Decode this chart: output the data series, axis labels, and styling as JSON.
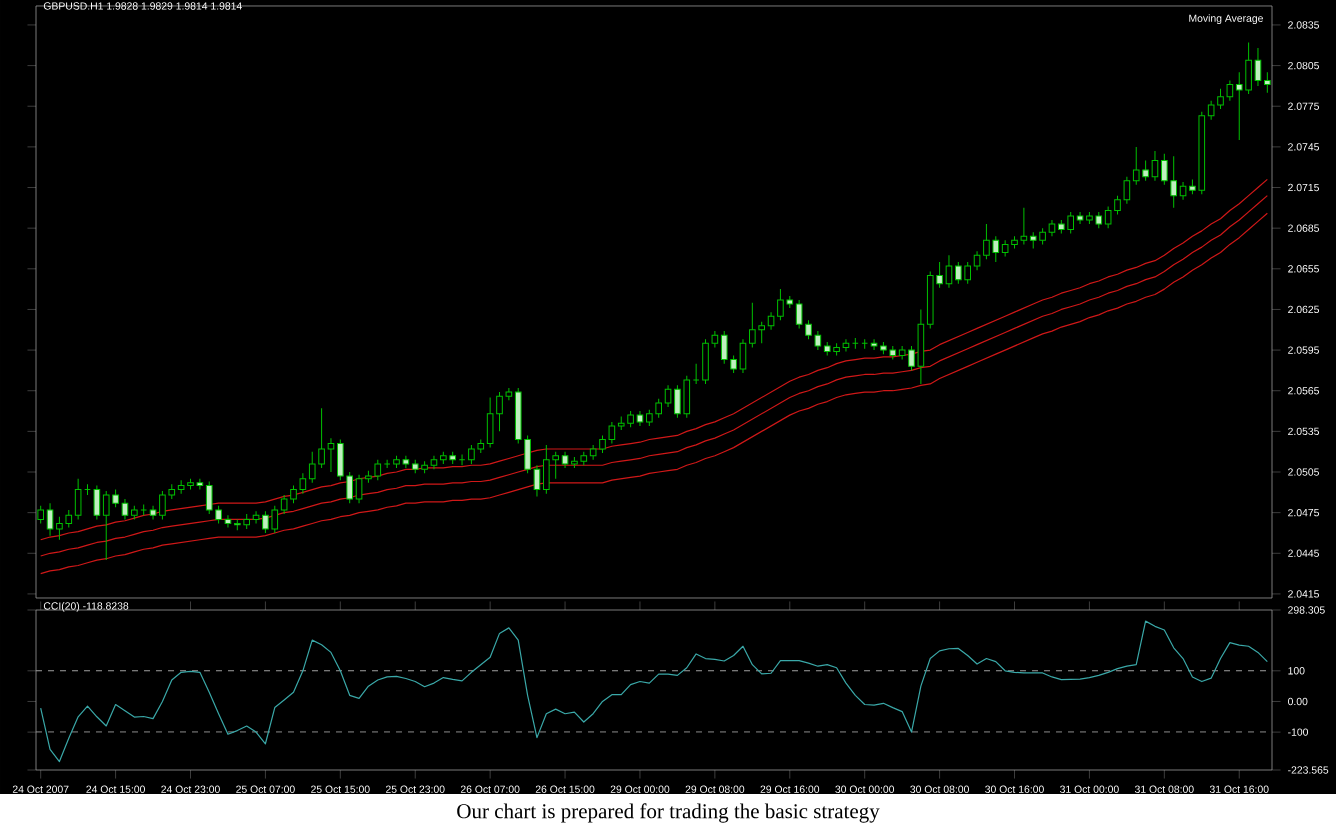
{
  "chart_data": [
    {
      "type": "candlestick",
      "title": "GBPUSD.H1 1.9828 1.9829 1.9814 1.9814",
      "annotations": [
        "Moving Average"
      ],
      "color": "#00c000",
      "ylim": [
        2.0412,
        2.0849
      ],
      "tick_labels": "y",
      "categories": [
        null,
        null,
        null,
        null,
        null,
        null,
        null,
        null,
        null,
        null,
        null,
        null,
        null,
        null,
        null,
        null,
        null,
        null,
        null,
        null,
        null,
        null,
        null,
        null,
        null,
        null,
        null,
        null,
        null,
        null,
        null,
        null,
        null,
        null,
        null,
        null,
        null,
        null,
        null,
        null,
        null,
        null,
        null,
        null,
        null,
        null,
        null,
        null,
        null,
        null,
        null,
        null,
        null,
        null,
        null,
        null,
        null,
        null,
        null,
        null,
        null,
        null,
        null,
        null,
        null,
        null,
        null,
        null,
        null,
        null,
        null,
        null,
        null,
        null,
        null,
        null,
        null,
        null,
        null,
        null,
        null,
        null,
        null,
        null,
        null,
        null,
        null,
        null,
        null,
        null,
        null,
        null,
        null,
        null,
        null,
        null,
        null,
        null,
        null,
        null,
        null,
        null,
        null,
        null,
        null,
        null,
        null,
        null,
        null,
        null,
        null,
        null,
        null,
        null,
        null,
        null,
        null,
        null,
        null,
        null,
        null,
        null,
        null,
        null,
        null,
        null,
        null,
        null,
        null,
        null,
        null,
        null
      ],
      "yticks": [
        2.0415,
        2.0445,
        2.0475,
        2.0505,
        2.0535,
        2.0565,
        2.0595,
        2.0625,
        2.0655,
        2.0685,
        2.0715,
        2.0745,
        2.0775,
        2.0805,
        2.0835
      ],
      "ohlc": [
        [
          2.047,
          2.048,
          2.0467,
          2.0477
        ],
        [
          2.0477,
          2.0482,
          2.0458,
          2.0463
        ],
        [
          2.0463,
          2.0472,
          2.0455,
          2.0467
        ],
        [
          2.0467,
          2.0477,
          2.0464,
          2.0473
        ],
        [
          2.0473,
          2.05,
          2.047,
          2.0492
        ],
        [
          2.0492,
          2.0496,
          2.0488,
          2.0492
        ],
        [
          2.0492,
          2.0495,
          2.047,
          2.0473
        ],
        [
          2.0473,
          2.0491,
          2.044,
          2.0488
        ],
        [
          2.0488,
          2.0492,
          2.0479,
          2.0482
        ],
        [
          2.0482,
          2.0485,
          2.047,
          2.0473
        ],
        [
          2.0473,
          2.048,
          2.047,
          2.0477
        ],
        [
          2.0477,
          2.0481,
          2.0473,
          2.0477
        ],
        [
          2.0477,
          2.048,
          2.047,
          2.0473
        ],
        [
          2.0473,
          2.0491,
          2.047,
          2.0488
        ],
        [
          2.0488,
          2.0496,
          2.0485,
          2.0492
        ],
        [
          2.0492,
          2.0499,
          2.0489,
          2.0495
        ],
        [
          2.0495,
          2.05,
          2.0492,
          2.0497
        ],
        [
          2.0497,
          2.05,
          2.0492,
          2.0495
        ],
        [
          2.0495,
          2.0498,
          2.0474,
          2.0477
        ],
        [
          2.0477,
          2.048,
          2.0467,
          2.047
        ],
        [
          2.047,
          2.0473,
          2.0464,
          2.0467
        ],
        [
          2.0467,
          2.047,
          2.0462,
          2.0466
        ],
        [
          2.0466,
          2.0474,
          2.0463,
          2.047
        ],
        [
          2.047,
          2.0476,
          2.0467,
          2.0473
        ],
        [
          2.0473,
          2.0476,
          2.046,
          2.0463
        ],
        [
          2.0463,
          2.048,
          2.046,
          2.0477
        ],
        [
          2.0477,
          2.0488,
          2.0474,
          2.0485
        ],
        [
          2.0485,
          2.0495,
          2.0482,
          2.0492
        ],
        [
          2.0492,
          2.0504,
          2.0489,
          2.05
        ],
        [
          2.05,
          2.052,
          2.0497,
          2.0511
        ],
        [
          2.0511,
          2.0552,
          2.0508,
          2.0522
        ],
        [
          2.0522,
          2.053,
          2.0505,
          2.0526
        ],
        [
          2.0526,
          2.0529,
          2.0499,
          2.0502
        ],
        [
          2.0502,
          2.0505,
          2.0482,
          2.0485
        ],
        [
          2.0485,
          2.0503,
          2.0482,
          2.05
        ],
        [
          2.05,
          2.0506,
          2.0497,
          2.0502
        ],
        [
          2.0502,
          2.0514,
          2.0499,
          2.0511
        ],
        [
          2.0511,
          2.0514,
          2.0508,
          2.0511
        ],
        [
          2.0511,
          2.0517,
          2.0508,
          2.0514
        ],
        [
          2.0514,
          2.0517,
          2.0508,
          2.0511
        ],
        [
          2.0511,
          2.0514,
          2.0504,
          2.0507
        ],
        [
          2.0507,
          2.0513,
          2.0504,
          2.051
        ],
        [
          2.051,
          2.0517,
          2.0507,
          2.0514
        ],
        [
          2.0514,
          2.052,
          2.0511,
          2.0517
        ],
        [
          2.0517,
          2.052,
          2.0511,
          2.0514
        ],
        [
          2.0514,
          2.0518,
          2.051,
          2.0514
        ],
        [
          2.0514,
          2.0525,
          2.0511,
          2.0522
        ],
        [
          2.0522,
          2.0529,
          2.0519,
          2.0526
        ],
        [
          2.0526,
          2.056,
          2.0523,
          2.0548
        ],
        [
          2.0548,
          2.0564,
          2.0535,
          2.0561
        ],
        [
          2.0561,
          2.0567,
          2.0558,
          2.0564
        ],
        [
          2.0564,
          2.0567,
          2.0526,
          2.0529
        ],
        [
          2.0529,
          2.0532,
          2.0504,
          2.0507
        ],
        [
          2.0507,
          2.051,
          2.0487,
          2.0492
        ],
        [
          2.0492,
          2.0525,
          2.0489,
          2.0514
        ],
        [
          2.0514,
          2.052,
          2.05,
          2.0517
        ],
        [
          2.0517,
          2.052,
          2.0508,
          2.0511
        ],
        [
          2.0511,
          2.0516,
          2.0508,
          2.0513
        ],
        [
          2.0513,
          2.052,
          2.051,
          2.0517
        ],
        [
          2.0517,
          2.0525,
          2.0514,
          2.0522
        ],
        [
          2.0522,
          2.0532,
          2.0519,
          2.0529
        ],
        [
          2.0529,
          2.0542,
          2.0526,
          2.0539
        ],
        [
          2.0539,
          2.0546,
          2.0536,
          2.0541
        ],
        [
          2.0541,
          2.055,
          2.0538,
          2.0547
        ],
        [
          2.0547,
          2.055,
          2.0539,
          2.0542
        ],
        [
          2.0542,
          2.0551,
          2.0539,
          2.0548
        ],
        [
          2.0548,
          2.0559,
          2.0545,
          2.0556
        ],
        [
          2.0556,
          2.0569,
          2.0553,
          2.0566
        ],
        [
          2.0566,
          2.0569,
          2.0545,
          2.0548
        ],
        [
          2.0548,
          2.0576,
          2.0545,
          2.0573
        ],
        [
          2.0573,
          2.0585,
          2.057,
          2.0573
        ],
        [
          2.0573,
          2.0603,
          2.057,
          2.06
        ],
        [
          2.06,
          2.0609,
          2.0597,
          2.0606
        ],
        [
          2.0606,
          2.0609,
          2.0585,
          2.0588
        ],
        [
          2.0588,
          2.0591,
          2.0578,
          2.0581
        ],
        [
          2.0581,
          2.0603,
          2.0578,
          2.06
        ],
        [
          2.06,
          2.063,
          2.0597,
          2.061
        ],
        [
          2.061,
          2.0616,
          2.06,
          2.0613
        ],
        [
          2.0613,
          2.0623,
          2.061,
          2.062
        ],
        [
          2.062,
          2.064,
          2.0617,
          2.0632
        ],
        [
          2.0632,
          2.0635,
          2.0626,
          2.0629
        ],
        [
          2.0629,
          2.0632,
          2.0611,
          2.0614
        ],
        [
          2.0614,
          2.0617,
          2.0603,
          2.0606
        ],
        [
          2.0606,
          2.0609,
          2.0595,
          2.0598
        ],
        [
          2.0598,
          2.0601,
          2.0591,
          2.0594
        ],
        [
          2.0594,
          2.06,
          2.0591,
          2.0597
        ],
        [
          2.0597,
          2.0603,
          2.0594,
          2.06
        ],
        [
          2.06,
          2.0604,
          2.0596,
          2.06
        ],
        [
          2.06,
          2.0603,
          2.0596,
          2.06
        ],
        [
          2.06,
          2.0603,
          2.0595,
          2.0598
        ],
        [
          2.0598,
          2.0601,
          2.0592,
          2.0595
        ],
        [
          2.0595,
          2.0598,
          2.0588,
          2.0591
        ],
        [
          2.0591,
          2.0598,
          2.0588,
          2.0595
        ],
        [
          2.0595,
          2.0598,
          2.058,
          2.0583
        ],
        [
          2.0583,
          2.0625,
          2.057,
          2.0614
        ],
        [
          2.0614,
          2.0653,
          2.0611,
          2.065
        ],
        [
          2.065,
          2.066,
          2.0641,
          2.0644
        ],
        [
          2.0644,
          2.0665,
          2.0641,
          2.0657
        ],
        [
          2.0657,
          2.066,
          2.0644,
          2.0647
        ],
        [
          2.0647,
          2.066,
          2.0644,
          2.0657
        ],
        [
          2.0657,
          2.0668,
          2.0654,
          2.0665
        ],
        [
          2.0665,
          2.0688,
          2.0662,
          2.0676
        ],
        [
          2.0676,
          2.0679,
          2.066,
          2.0667
        ],
        [
          2.0667,
          2.0676,
          2.0664,
          2.0673
        ],
        [
          2.0673,
          2.0679,
          2.067,
          2.0676
        ],
        [
          2.0676,
          2.07,
          2.0673,
          2.0679
        ],
        [
          2.0679,
          2.0682,
          2.067,
          2.0676
        ],
        [
          2.0676,
          2.0685,
          2.0673,
          2.0682
        ],
        [
          2.0682,
          2.0691,
          2.0679,
          2.0688
        ],
        [
          2.0688,
          2.0691,
          2.0681,
          2.0684
        ],
        [
          2.0684,
          2.0697,
          2.0681,
          2.0694
        ],
        [
          2.0694,
          2.0697,
          2.0688,
          2.0691
        ],
        [
          2.0691,
          2.0697,
          2.0688,
          2.0694
        ],
        [
          2.0694,
          2.0697,
          2.0685,
          2.0688
        ],
        [
          2.0688,
          2.0701,
          2.0685,
          2.0698
        ],
        [
          2.0698,
          2.0709,
          2.0695,
          2.0706
        ],
        [
          2.0706,
          2.0723,
          2.0703,
          2.072
        ],
        [
          2.072,
          2.0745,
          2.0717,
          2.0728
        ],
        [
          2.0728,
          2.0735,
          2.072,
          2.0723
        ],
        [
          2.0723,
          2.0742,
          2.072,
          2.0735
        ],
        [
          2.0735,
          2.074,
          2.0717,
          2.072
        ],
        [
          2.072,
          2.0738,
          2.07,
          2.0709
        ],
        [
          2.0709,
          2.0719,
          2.0706,
          2.0716
        ],
        [
          2.0716,
          2.0721,
          2.071,
          2.0713
        ],
        [
          2.0713,
          2.0771,
          2.071,
          2.0768
        ],
        [
          2.0768,
          2.0779,
          2.0765,
          2.0776
        ],
        [
          2.0776,
          2.0788,
          2.0773,
          2.0782
        ],
        [
          2.0782,
          2.0794,
          2.0779,
          2.0791
        ],
        [
          2.0791,
          2.08,
          2.075,
          2.0787
        ],
        [
          2.0787,
          2.0822,
          2.0784,
          2.0809
        ],
        [
          2.0809,
          2.0818,
          2.079,
          2.0794
        ],
        [
          2.0794,
          2.08,
          2.0785,
          2.0791
        ]
      ],
      "series": [
        {
          "type": "line",
          "color": "#d01818",
          "values": [
            2.0455,
            2.0457,
            2.0458,
            2.046,
            2.0461,
            2.0463,
            2.0465,
            2.0466,
            2.0468,
            2.0469,
            2.0471,
            2.0473,
            2.0474,
            2.0476,
            2.0477,
            2.0478,
            2.0479,
            2.048,
            2.0481,
            2.0482,
            2.0482,
            2.0482,
            2.0482,
            2.0482,
            2.0483,
            2.0485,
            2.0487,
            2.0488,
            2.049,
            2.0492,
            2.0494,
            2.0495,
            2.0497,
            2.0498,
            2.05,
            2.0501,
            2.0502,
            2.0504,
            2.0505,
            2.0507,
            2.0507,
            2.0508,
            2.0508,
            2.0508,
            2.0509,
            2.0509,
            2.051,
            2.051,
            2.0511,
            2.0513,
            2.0515,
            2.0517,
            2.0519,
            2.0521,
            2.0522,
            2.0522,
            2.0522,
            2.0522,
            2.0522,
            2.0522,
            2.0522,
            2.0524,
            2.0525,
            2.0526,
            2.0527,
            2.0529,
            2.053,
            2.0531,
            2.0532,
            2.0535,
            2.0537,
            2.054,
            2.0542,
            2.0545,
            2.0548,
            2.0552,
            2.0556,
            2.056,
            2.0564,
            2.0568,
            2.0572,
            2.0575,
            2.0577,
            2.058,
            2.0582,
            2.0585,
            2.0587,
            2.0588,
            2.0589,
            2.0589,
            2.059,
            2.059,
            2.0591,
            2.0592,
            2.0594,
            2.0595,
            2.0599,
            2.0602,
            2.0605,
            2.0608,
            2.0611,
            2.0614,
            2.0617,
            2.062,
            2.0623,
            2.0626,
            2.0629,
            2.0632,
            2.0634,
            2.0637,
            2.0639,
            2.0641,
            2.0644,
            2.0646,
            2.0649,
            2.0651,
            2.0654,
            2.0656,
            2.0659,
            2.0661,
            2.0665,
            2.067,
            2.0674,
            2.0679,
            2.0683,
            2.0688,
            2.0692,
            2.0698,
            2.0703,
            2.0709,
            2.0715,
            2.0721
          ]
        },
        {
          "type": "line",
          "color": "#d01818",
          "values": [
            2.0443,
            2.0445,
            2.0446,
            2.0448,
            2.0449,
            2.0451,
            2.0453,
            2.0454,
            2.0456,
            2.0457,
            2.0459,
            2.0461,
            2.0462,
            2.0464,
            2.0465,
            2.0466,
            2.0467,
            2.0468,
            2.0469,
            2.047,
            2.047,
            2.047,
            2.047,
            2.047,
            2.0471,
            2.0473,
            2.0475,
            2.0476,
            2.0478,
            2.048,
            2.0482,
            2.0483,
            2.0485,
            2.0486,
            2.0488,
            2.0489,
            2.049,
            2.0492,
            2.0493,
            2.0495,
            2.0495,
            2.0496,
            2.0496,
            2.0496,
            2.0497,
            2.0497,
            2.0498,
            2.0498,
            2.0499,
            2.0501,
            2.0503,
            2.0505,
            2.0507,
            2.0509,
            2.051,
            2.051,
            2.051,
            2.051,
            2.051,
            2.051,
            2.051,
            2.0512,
            2.0513,
            2.0514,
            2.0515,
            2.0517,
            2.0518,
            2.0519,
            2.052,
            2.0523,
            2.0525,
            2.0528,
            2.053,
            2.0533,
            2.0536,
            2.054,
            2.0544,
            2.0548,
            2.0552,
            2.0556,
            2.056,
            2.0563,
            2.0565,
            2.0568,
            2.057,
            2.0573,
            2.0575,
            2.0576,
            2.0577,
            2.0577,
            2.0578,
            2.0578,
            2.0579,
            2.058,
            2.0582,
            2.0583,
            2.0587,
            2.059,
            2.0593,
            2.0596,
            2.0599,
            2.0602,
            2.0605,
            2.0608,
            2.0611,
            2.0614,
            2.0617,
            2.062,
            2.0622,
            2.0625,
            2.0627,
            2.0629,
            2.0632,
            2.0634,
            2.0637,
            2.0639,
            2.0642,
            2.0644,
            2.0647,
            2.0649,
            2.0653,
            2.0658,
            2.0662,
            2.0667,
            2.0671,
            2.0676,
            2.068,
            2.0686,
            2.0691,
            2.0697,
            2.0703,
            2.0709
          ]
        },
        {
          "type": "line",
          "color": "#d01818",
          "values": [
            2.043,
            2.0432,
            2.0433,
            2.0435,
            2.0436,
            2.0438,
            2.044,
            2.0441,
            2.0443,
            2.0444,
            2.0446,
            2.0448,
            2.0449,
            2.0451,
            2.0452,
            2.0453,
            2.0454,
            2.0455,
            2.0456,
            2.0457,
            2.0457,
            2.0457,
            2.0457,
            2.0457,
            2.0458,
            2.046,
            2.0462,
            2.0463,
            2.0465,
            2.0467,
            2.0469,
            2.047,
            2.0472,
            2.0473,
            2.0475,
            2.0476,
            2.0477,
            2.0479,
            2.048,
            2.0482,
            2.0482,
            2.0483,
            2.0483,
            2.0483,
            2.0484,
            2.0484,
            2.0485,
            2.0485,
            2.0486,
            2.0488,
            2.049,
            2.0492,
            2.0494,
            2.0496,
            2.0497,
            2.0497,
            2.0497,
            2.0497,
            2.0497,
            2.0497,
            2.0497,
            2.0499,
            2.05,
            2.0501,
            2.0502,
            2.0504,
            2.0505,
            2.0506,
            2.0507,
            2.051,
            2.0512,
            2.0515,
            2.0517,
            2.052,
            2.0523,
            2.0527,
            2.0531,
            2.0535,
            2.0539,
            2.0543,
            2.0547,
            2.055,
            2.0552,
            2.0555,
            2.0557,
            2.056,
            2.0562,
            2.0563,
            2.0564,
            2.0564,
            2.0565,
            2.0565,
            2.0566,
            2.0567,
            2.0569,
            2.057,
            2.0574,
            2.0577,
            2.058,
            2.0583,
            2.0586,
            2.0589,
            2.0592,
            2.0595,
            2.0598,
            2.0601,
            2.0604,
            2.0607,
            2.0609,
            2.0612,
            2.0614,
            2.0616,
            2.0619,
            2.0621,
            2.0624,
            2.0626,
            2.0629,
            2.0631,
            2.0634,
            2.0636,
            2.064,
            2.0645,
            2.0649,
            2.0654,
            2.0658,
            2.0663,
            2.0667,
            2.0673,
            2.0678,
            2.0684,
            2.069,
            2.0696
          ]
        }
      ]
    },
    {
      "type": "line",
      "title": "CCI(20) -118.8238",
      "annotations": [
        "Our chart is prepared for trading the basic strategy"
      ],
      "ylim": [
        -223.565,
        298.305
      ],
      "categories": [
        "24 Oct 2007",
        null,
        null,
        null,
        null,
        null,
        null,
        null,
        "24 Oct 15:00",
        null,
        null,
        null,
        null,
        null,
        null,
        null,
        "24 Oct 23:00",
        null,
        null,
        null,
        null,
        null,
        null,
        null,
        "25 Oct 07:00",
        null,
        null,
        null,
        null,
        null,
        null,
        null,
        "25 Oct 15:00",
        null,
        null,
        null,
        null,
        null,
        null,
        null,
        "25 Oct 23:00",
        null,
        null,
        null,
        null,
        null,
        null,
        null,
        "26 Oct 07:00",
        null,
        null,
        null,
        null,
        null,
        null,
        null,
        "26 Oct 15:00",
        null,
        null,
        null,
        null,
        null,
        null,
        null,
        "29 Oct 00:00",
        null,
        null,
        null,
        null,
        null,
        null,
        null,
        "29 Oct 08:00",
        null,
        null,
        null,
        null,
        null,
        null,
        null,
        "29 Oct 16:00",
        null,
        null,
        null,
        null,
        null,
        null,
        null,
        "30 Oct 00:00",
        null,
        null,
        null,
        null,
        null,
        null,
        null,
        "30 Oct 08:00",
        null,
        null,
        null,
        null,
        null,
        null,
        null,
        "30 Oct 16:00",
        null,
        null,
        null,
        null,
        null,
        null,
        null,
        "31 Oct 00:00",
        null,
        null,
        null,
        null,
        null,
        null,
        null,
        "31 Oct 08:00",
        null,
        null,
        null,
        null,
        null,
        null,
        null,
        "31 Oct 16:00",
        null,
        null,
        null
      ],
      "yticks": [
        298.305,
        100,
        {
          "value": 0,
          "label": "0.00"
        },
        -100,
        -223.565
      ],
      "ref_lines": [
        {
          "axis": "y",
          "value": 100,
          "line_style": "dashed",
          "color": "#a0a0a0"
        },
        {
          "axis": "y",
          "value": -100,
          "line_style": "dashed",
          "color": "#a0a0a0"
        }
      ],
      "series": [
        {
          "color": "#3aa8a8",
          "values": [
            -22,
            -156,
            -196,
            -120,
            -50,
            -15,
            -50,
            -80,
            -10,
            -30,
            -51,
            -49,
            -56,
            0,
            70,
            95,
            98,
            95,
            30,
            -40,
            -107,
            -95,
            -80,
            -100,
            -138,
            -20,
            5,
            30,
            100,
            200,
            185,
            160,
            100,
            20,
            10,
            50,
            70,
            80,
            82,
            75,
            65,
            48,
            60,
            78,
            72,
            67,
            95,
            120,
            144,
            222,
            240,
            200,
            20,
            -118,
            -40,
            -25,
            -40,
            -35,
            -67,
            -40,
            0,
            22,
            22,
            55,
            65,
            60,
            89,
            89,
            85,
            110,
            155,
            140,
            137,
            132,
            150,
            180,
            120,
            90,
            92,
            133,
            133,
            133,
            125,
            115,
            120,
            110,
            60,
            20,
            -10,
            -12,
            -6,
            -20,
            -33,
            -100,
            50,
            140,
            165,
            172,
            173,
            150,
            122,
            140,
            130,
            100,
            95,
            93,
            93,
            93,
            80,
            71,
            72,
            73,
            78,
            85,
            95,
            107,
            115,
            120,
            262,
            245,
            233,
            175,
            140,
            80,
            65,
            76,
            140,
            192,
            184,
            180,
            160,
            130
          ]
        }
      ]
    }
  ]
}
